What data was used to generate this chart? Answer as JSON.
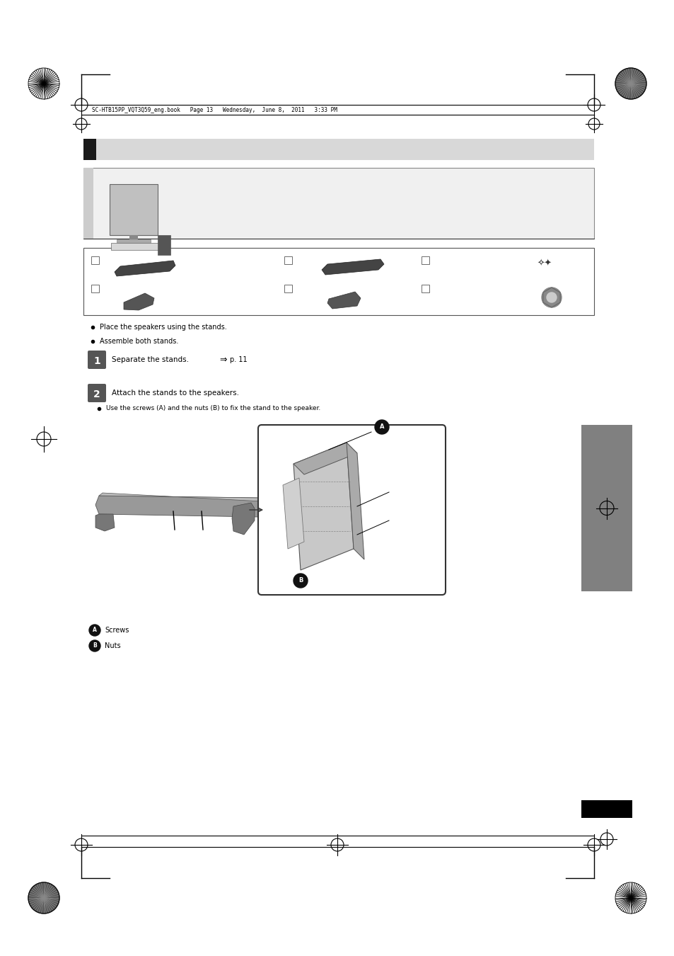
{
  "page_width": 9.54,
  "page_height": 13.5,
  "bg_color": "#ffffff",
  "header_text": "SC-HTB15PP_VQT3Q59_eng.book   Page 13   Wednesday,  June 8,  2011   3:33 PM",
  "title_bar_color": "#d8d8d8",
  "title_bar_black": "#1a1a1a",
  "gray_sidebar_color": "#808080",
  "bottom_black_bar_color": "#000000",
  "bullet_texts": [
    "Place the speakers using the stands.",
    "Assemble both stands."
  ],
  "step1_text": "Separate the stands.",
  "step1_arrow": "⇒",
  "step1_ref": "p. 11",
  "step2_text": "Attach the stands to the speakers.",
  "step2_bullet": "Use the screws (A) and the nuts (B) to fix the stand to the speaker.",
  "label_A_text": "Screws",
  "label_B_text": "Nuts"
}
